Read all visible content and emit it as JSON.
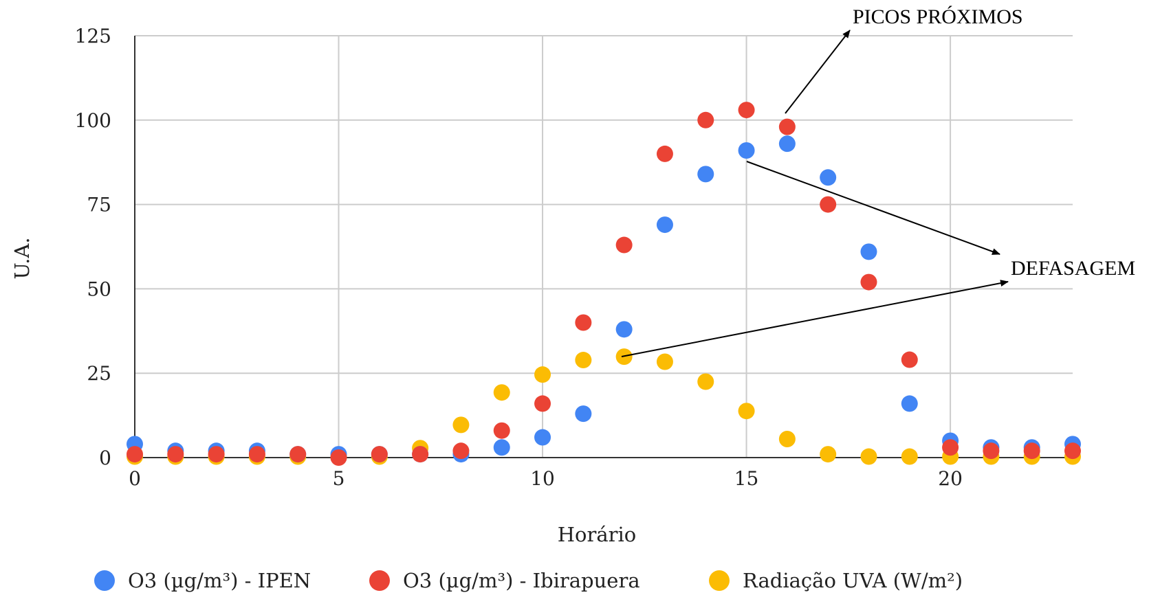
{
  "chart_data": {
    "type": "scatter",
    "title": "",
    "xlabel": "Horário",
    "ylabel": "U.A.",
    "xlim": [
      0,
      23
    ],
    "ylim": [
      0,
      125
    ],
    "x_ticks": [
      0,
      5,
      10,
      15,
      20
    ],
    "y_ticks": [
      0,
      25,
      50,
      75,
      100,
      125
    ],
    "grid": true,
    "legend_position": "bottom",
    "x": [
      0,
      1,
      2,
      3,
      4,
      5,
      6,
      7,
      8,
      9,
      10,
      11,
      12,
      13,
      14,
      15,
      16,
      17,
      18,
      19,
      20,
      21,
      22,
      23
    ],
    "series": [
      {
        "name": "O3 (µg/m³) - IPEN",
        "color": "#4285F4",
        "values": [
          4,
          2,
          2,
          2,
          1,
          1,
          1,
          1,
          1,
          3,
          6,
          13,
          38,
          69,
          84,
          91,
          93,
          83,
          61,
          16,
          5,
          3,
          3,
          4
        ]
      },
      {
        "name": "O3 (µg/m³) - Ibirapuera",
        "color": "#EA4335",
        "values": [
          1,
          1,
          1,
          1,
          1,
          0,
          1,
          1,
          2,
          8,
          16,
          40,
          63,
          90,
          100,
          103,
          98,
          75,
          52,
          29,
          3,
          2,
          2,
          2
        ]
      },
      {
        "name": "Radiação UVA (W/m²)",
        "color": "#FBBC04",
        "values": [
          0.3,
          0.3,
          0.3,
          0.3,
          0.3,
          0.3,
          0.3,
          2.8,
          9.7,
          19.3,
          24.6,
          28.9,
          29.9,
          28.4,
          22.5,
          13.8,
          5.5,
          1,
          0.3,
          0.3,
          0.3,
          0.3,
          0.3,
          0.3
        ]
      }
    ],
    "annotations": [
      {
        "text": "PICOS PRÓXIMOS"
      },
      {
        "text": "DEFASAGEM"
      }
    ]
  }
}
